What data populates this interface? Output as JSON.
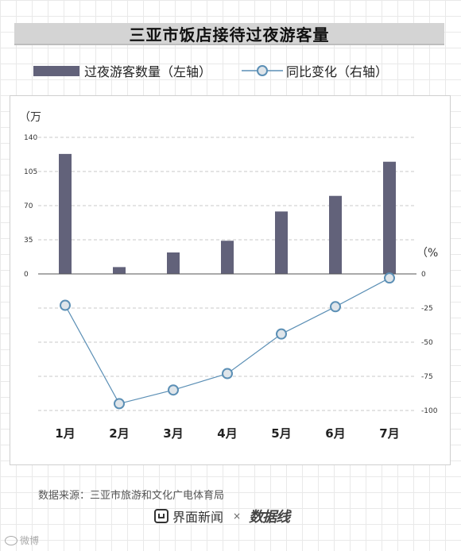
{
  "title": "三亚市饭店接待过夜游客量",
  "legend": {
    "bar_label": "过夜游客数量（左轴）",
    "line_label": "同比变化（右轴）"
  },
  "source": "数据来源：三亚市旅游和文化广电体育局",
  "brand": {
    "name": "界面新闻",
    "times": "×",
    "mark": "数据线"
  },
  "watermark": "微博",
  "colors": {
    "bar": "#62627a",
    "line": "#5b8fb5",
    "marker_fill": "#dfe5ea",
    "grid": "#c8c8c8"
  },
  "chart_data": {
    "type": "bar+line",
    "categories": [
      "1月",
      "2月",
      "3月",
      "4月",
      "5月",
      "6月",
      "7月"
    ],
    "series": [
      {
        "name": "过夜游客数量",
        "axis": "left",
        "type": "bar",
        "values": [
          123,
          7,
          22,
          34,
          64,
          80,
          115
        ]
      },
      {
        "name": "同比变化",
        "axis": "right",
        "type": "line",
        "values": [
          -23,
          -95,
          -85,
          -73,
          -44,
          -24,
          -3
        ]
      }
    ],
    "left_axis": {
      "unit": "（万",
      "ticks": [
        140,
        105,
        70,
        35,
        0
      ],
      "range": [
        0,
        140
      ]
    },
    "right_axis": {
      "unit": "（%",
      "ticks": [
        0,
        -25,
        -50,
        -75,
        -100
      ],
      "range": [
        -100,
        0
      ]
    },
    "grid": true,
    "legend_position": "top"
  }
}
